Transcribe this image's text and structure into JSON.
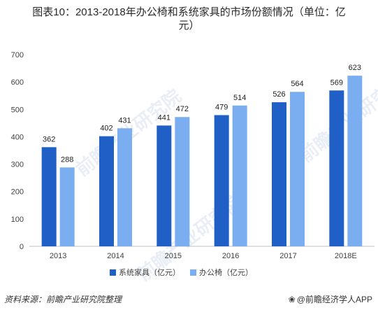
{
  "header": {
    "title_line1": "图表10：2013-2018年办公椅和系统家具的市场份额情况（单位：亿",
    "title_line2": "元）"
  },
  "footer": {
    "source": "资料来源：前瞻产业研究院整理",
    "brand": "@前瞻经济学人APP",
    "brand_icon": "paw-icon"
  },
  "watermark_text": "前瞻产业研究院",
  "colors": {
    "series_1": "#1f5fc6",
    "series_2": "#7aaef0",
    "axis": "#bfbfbf",
    "text": "#404040"
  },
  "chart_data": {
    "type": "bar",
    "title": "图表10：2013-2018年办公椅和系统家具的市场份额情况（单位：亿元）",
    "xlabel": "",
    "ylabel": "",
    "categories": [
      "2013",
      "2014",
      "2015",
      "2016",
      "2017",
      "2018E"
    ],
    "series": [
      {
        "name": "系统家具（亿元）",
        "values": [
          362,
          402,
          441,
          479,
          526,
          569
        ]
      },
      {
        "name": "办公椅（亿元）",
        "values": [
          288,
          431,
          472,
          514,
          564,
          623
        ]
      }
    ],
    "ylim": [
      0,
      700
    ],
    "yticks": [
      "0",
      "100",
      "200",
      "300",
      "400",
      "500",
      "600",
      "700"
    ],
    "grid": false,
    "legend_position": "bottom"
  }
}
